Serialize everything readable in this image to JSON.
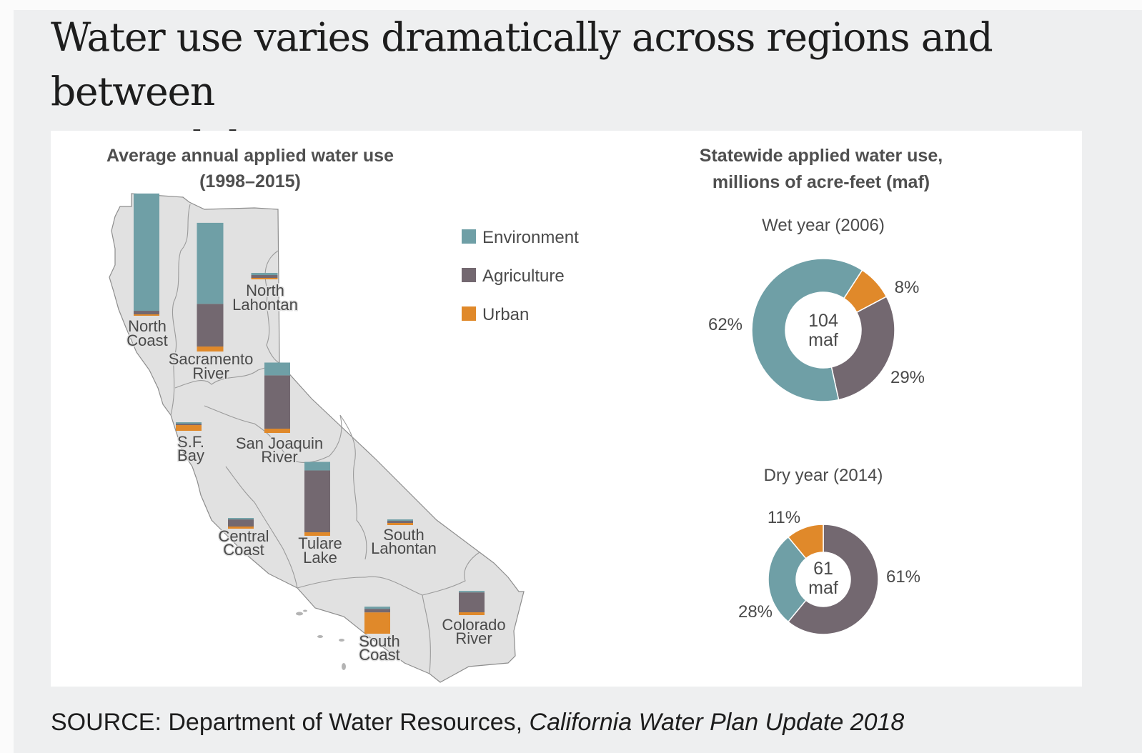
{
  "headline": {
    "line1": "Water use varies dramatically across regions and between",
    "line2": "wet and dry years"
  },
  "source": {
    "prefix": "SOURCE: Department of Water Resources, ",
    "title": "California Water Plan Update 2018"
  },
  "colors": {
    "environment": "#6f9fa6",
    "agriculture": "#736870",
    "urban": "#e0892a",
    "map": "#e1e1e1",
    "map_border": "#8d8d8d"
  },
  "chart_data": [
    {
      "type": "bar",
      "subtype": "stacked-bars-on-map",
      "title_line1": "Average annual applied water use",
      "title_line2": "(1998–2015)",
      "legend": [
        "Environment",
        "Agriculture",
        "Urban"
      ],
      "value_units": "relative (approx. maf)",
      "regions": [
        {
          "name_line1": "North",
          "name_line2": "Coast",
          "environment": 16.5,
          "agriculture": 0.5,
          "urban": 0.1
        },
        {
          "name_line1": "Sacramento",
          "name_line2": "River",
          "environment": 11.4,
          "agriculture": 6.0,
          "urban": 0.7
        },
        {
          "name_line1": "North",
          "name_line2": "Lahontan",
          "environment": 0.3,
          "agriculture": 0.4,
          "urban": 0.05
        },
        {
          "name_line1": "S.F.",
          "name_line2": "Bay",
          "environment": 0.1,
          "agriculture": 0.1,
          "urban": 0.8
        },
        {
          "name_line1": "San Joaquin",
          "name_line2": "River",
          "environment": 1.8,
          "agriculture": 7.5,
          "urban": 0.6
        },
        {
          "name_line1": "Central",
          "name_line2": "Coast",
          "environment": 0.1,
          "agriculture": 1.0,
          "urban": 0.3
        },
        {
          "name_line1": "Tulare",
          "name_line2": "Lake",
          "environment": 1.2,
          "agriculture": 8.7,
          "urban": 0.5
        },
        {
          "name_line1": "South",
          "name_line2": "Lahontan",
          "environment": 0.1,
          "agriculture": 0.3,
          "urban": 0.3
        },
        {
          "name_line1": "South",
          "name_line2": "Coast",
          "environment": 0.3,
          "agriculture": 0.5,
          "urban": 3.0
        },
        {
          "name_line1": "Colorado",
          "name_line2": "River",
          "environment": 0.05,
          "agriculture": 2.8,
          "urban": 0.4
        }
      ]
    },
    {
      "type": "pie",
      "subtype": "donut",
      "title_line1": "Statewide applied water use,",
      "title_line2": "millions of acre-feet (maf)",
      "subtitle": "Wet year (2006)",
      "center_value": "104",
      "center_unit": "maf",
      "slices": [
        {
          "name": "Urban",
          "value": 8,
          "label": "8%"
        },
        {
          "name": "Agriculture",
          "value": 29,
          "label": "29%"
        },
        {
          "name": "Environment",
          "value": 62,
          "label": "62%"
        }
      ]
    },
    {
      "type": "pie",
      "subtype": "donut",
      "subtitle": "Dry year (2014)",
      "center_value": "61",
      "center_unit": "maf",
      "slices": [
        {
          "name": "Agriculture",
          "value": 61,
          "label": "61%"
        },
        {
          "name": "Environment",
          "value": 28,
          "label": "28%"
        },
        {
          "name": "Urban",
          "value": 11,
          "label": "11%"
        }
      ]
    }
  ]
}
